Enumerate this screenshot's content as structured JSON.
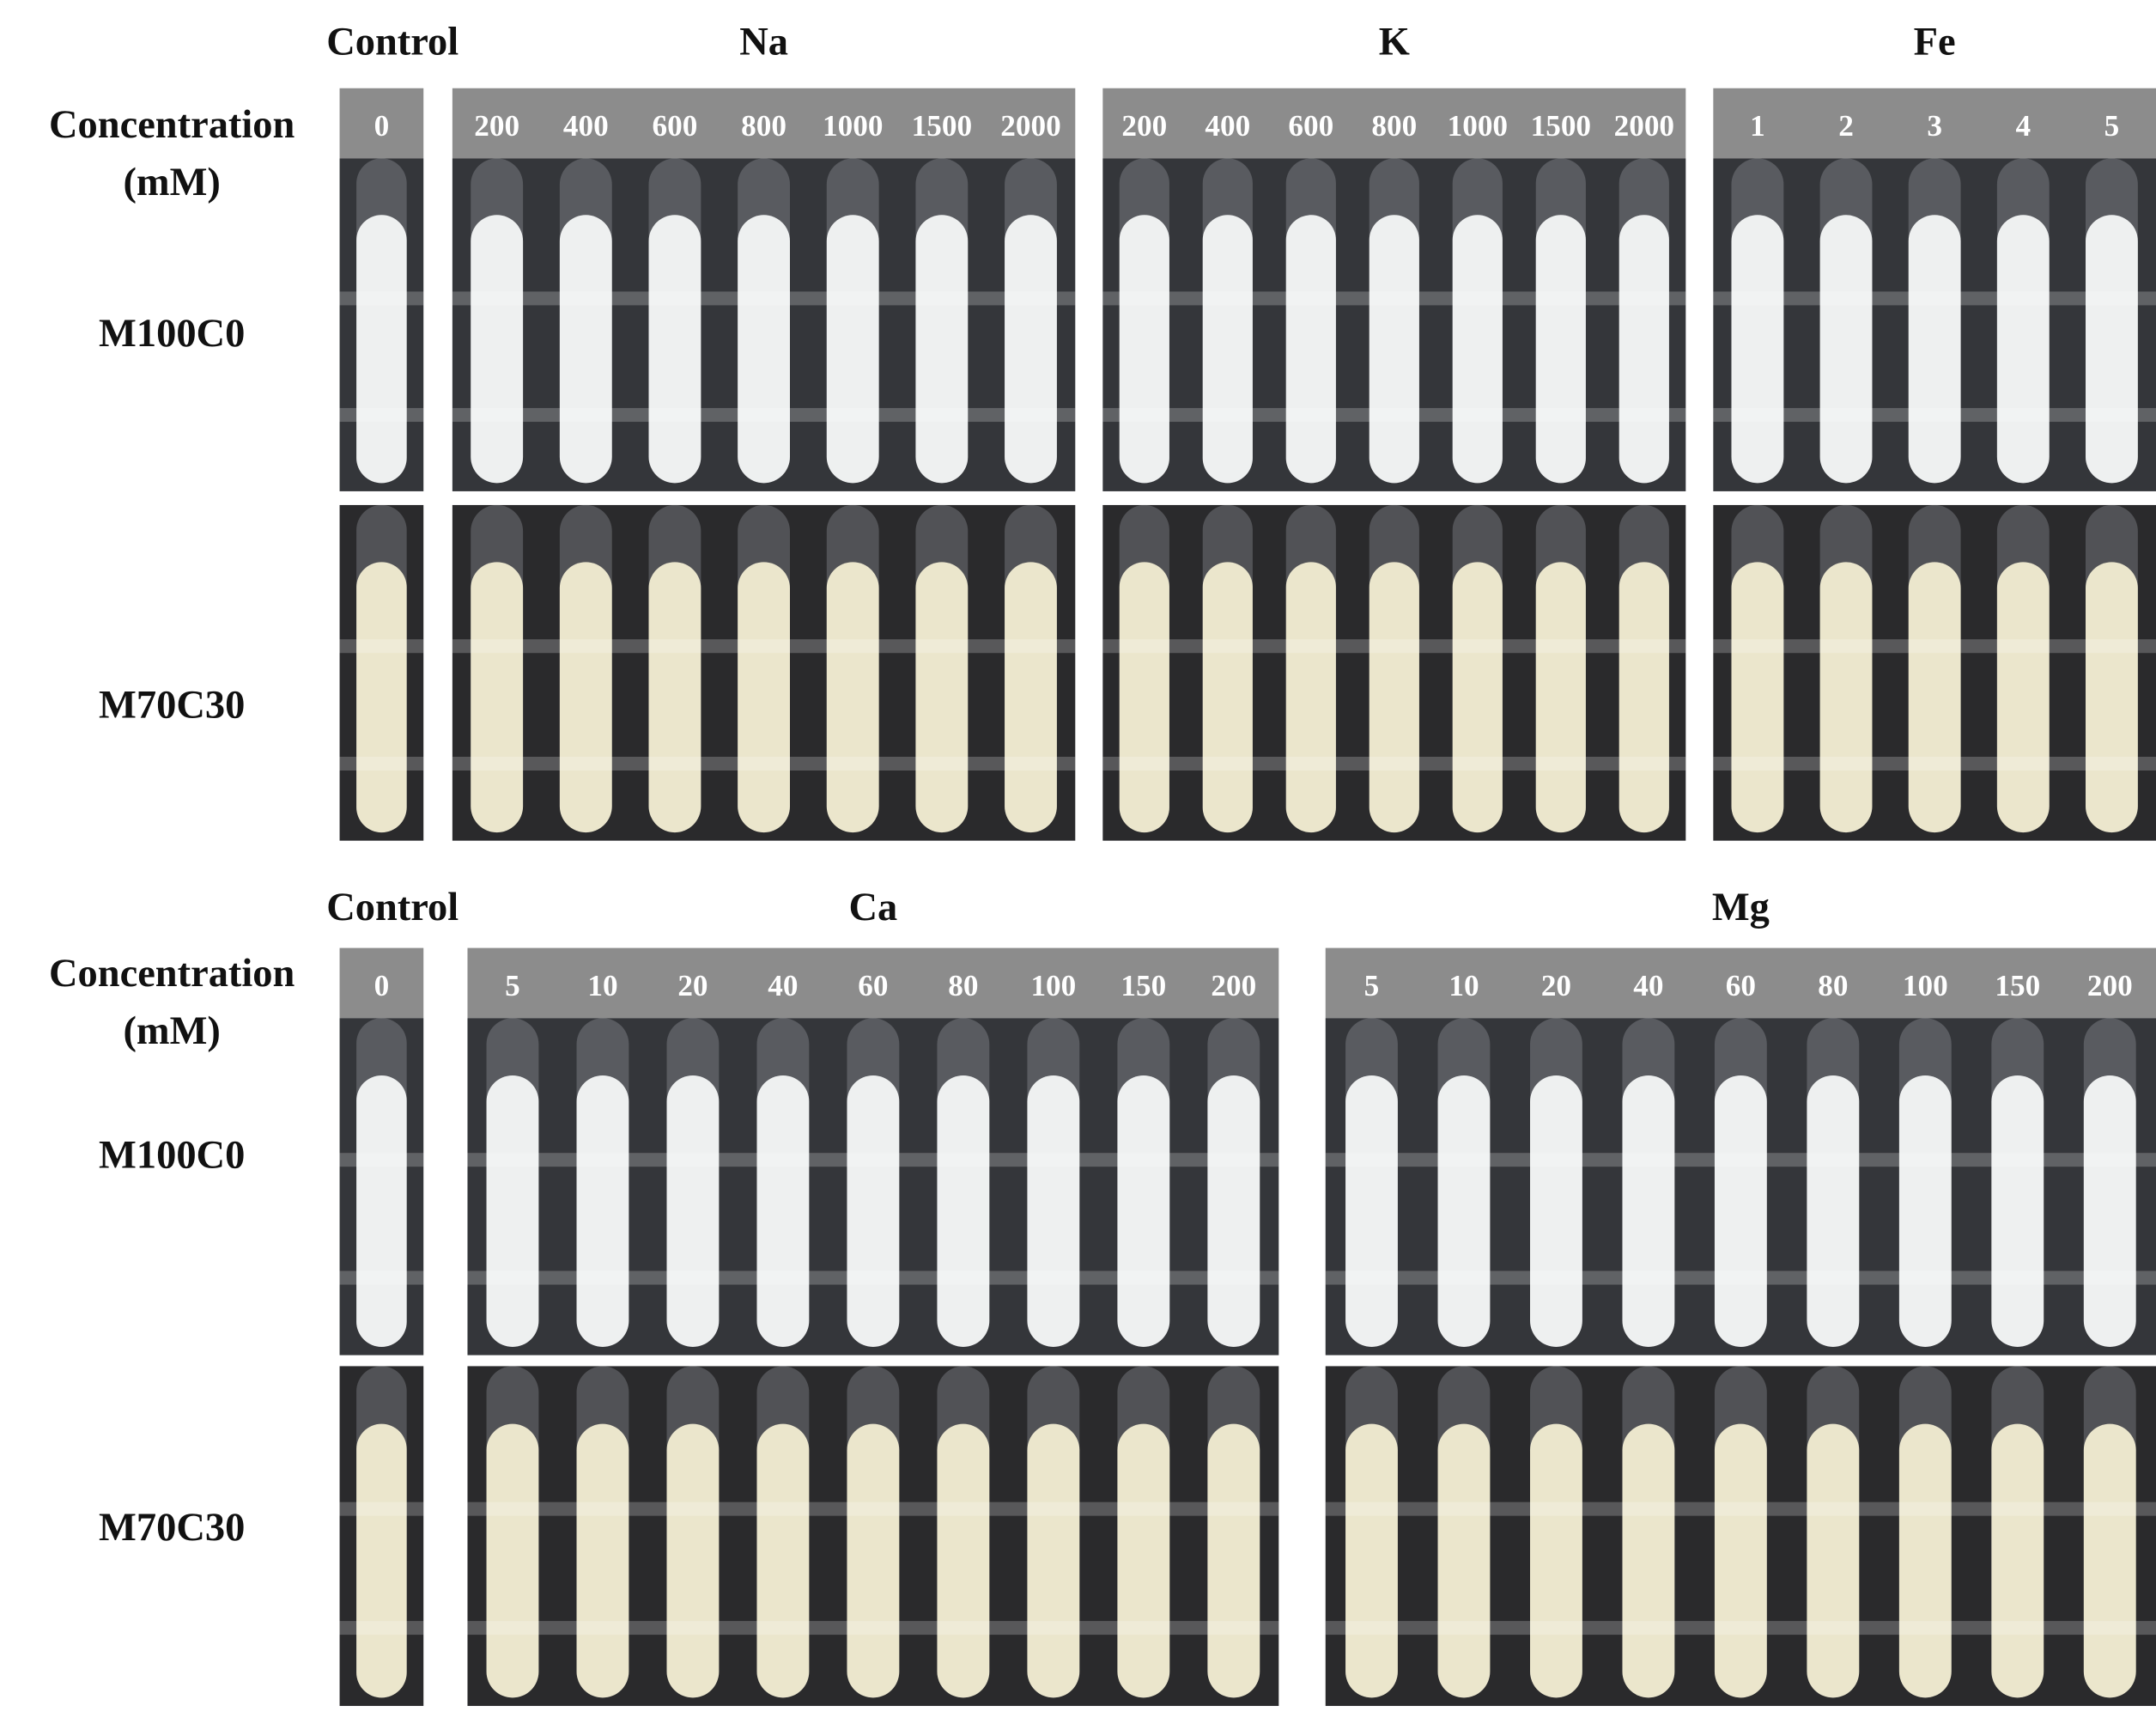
{
  "panels": [
    {
      "concentration_label": "Concentration",
      "unit_label": "(mM)",
      "rows": [
        "M100C0",
        "M70C30"
      ],
      "groups": [
        {
          "label": "Control",
          "concentrations": [
            0
          ]
        },
        {
          "label": "Na",
          "concentrations": [
            200,
            400,
            600,
            800,
            1000,
            1500,
            2000
          ]
        },
        {
          "label": "K",
          "concentrations": [
            200,
            400,
            600,
            800,
            1000,
            1500,
            2000
          ]
        },
        {
          "label": "Fe",
          "concentrations": [
            1,
            2,
            3,
            4,
            5
          ]
        }
      ]
    },
    {
      "concentration_label": "Concentration",
      "unit_label": "(mM)",
      "rows": [
        "M100C0",
        "M70C30"
      ],
      "groups": [
        {
          "label": "Control",
          "concentrations": [
            0
          ]
        },
        {
          "label": "Ca",
          "concentrations": [
            5,
            10,
            20,
            40,
            60,
            80,
            100,
            150,
            200
          ]
        },
        {
          "label": "Mg",
          "concentrations": [
            5,
            10,
            20,
            40,
            60,
            80,
            100,
            150,
            200
          ]
        }
      ]
    }
  ]
}
